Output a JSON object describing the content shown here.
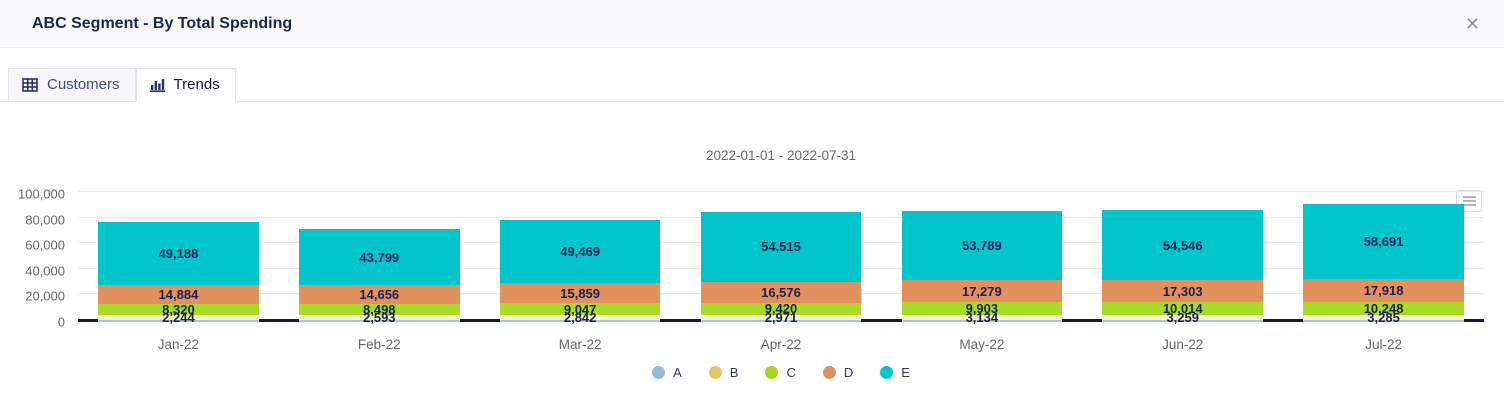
{
  "window": {
    "title": "ABC Segment - By Total Spending"
  },
  "icons": {
    "close": "✕"
  },
  "tabs": {
    "customers": {
      "label": "Customers"
    },
    "trends": {
      "label": "Trends"
    }
  },
  "chart_data": {
    "type": "bar",
    "stacked": true,
    "title": "2022-01-01 - 2022-07-31",
    "categories": [
      "Jan-22",
      "Feb-22",
      "Mar-22",
      "Apr-22",
      "May-22",
      "Jun-22",
      "Jul-22"
    ],
    "series": [
      {
        "name": "A",
        "legend_color": "#96bbde",
        "bar_color": "#a8c5e8",
        "values": [
          1500,
          1500,
          1500,
          1500,
          1500,
          1500,
          1500
        ],
        "labels_shown": false
      },
      {
        "name": "B",
        "legend_color": "#e3c665",
        "bar_color": "#f6f0d7",
        "values": [
          2244,
          2593,
          2842,
          2971,
          3134,
          3259,
          3285
        ],
        "labels_shown": true
      },
      {
        "name": "C",
        "legend_color": "#a6d71c",
        "bar_color": "#aada23",
        "values": [
          8320,
          8498,
          9047,
          9420,
          9903,
          10014,
          10248
        ],
        "labels_shown": true
      },
      {
        "name": "D",
        "legend_color": "#e0915d",
        "bar_color": "#e2915c",
        "values": [
          14884,
          14656,
          15859,
          16576,
          17279,
          17303,
          17918
        ],
        "labels_shown": true
      },
      {
        "name": "E",
        "legend_color": "#00c8ce",
        "bar_color": "#00c6cc",
        "values": [
          49188,
          43799,
          49469,
          54515,
          53789,
          54546,
          58691
        ],
        "labels_shown": true
      }
    ],
    "xlabel": "",
    "ylabel": "",
    "ylim": [
      0,
      100000
    ],
    "ytick_values": [
      0,
      20000,
      40000,
      60000,
      80000,
      100000
    ],
    "ytick_labels": [
      "0",
      "20,000",
      "40,000",
      "60,000",
      "80,000",
      "100,000"
    ],
    "grid": true,
    "legend_position": "bottom",
    "label_color": "#1b1e55",
    "axis_line_color": "#15174d"
  }
}
